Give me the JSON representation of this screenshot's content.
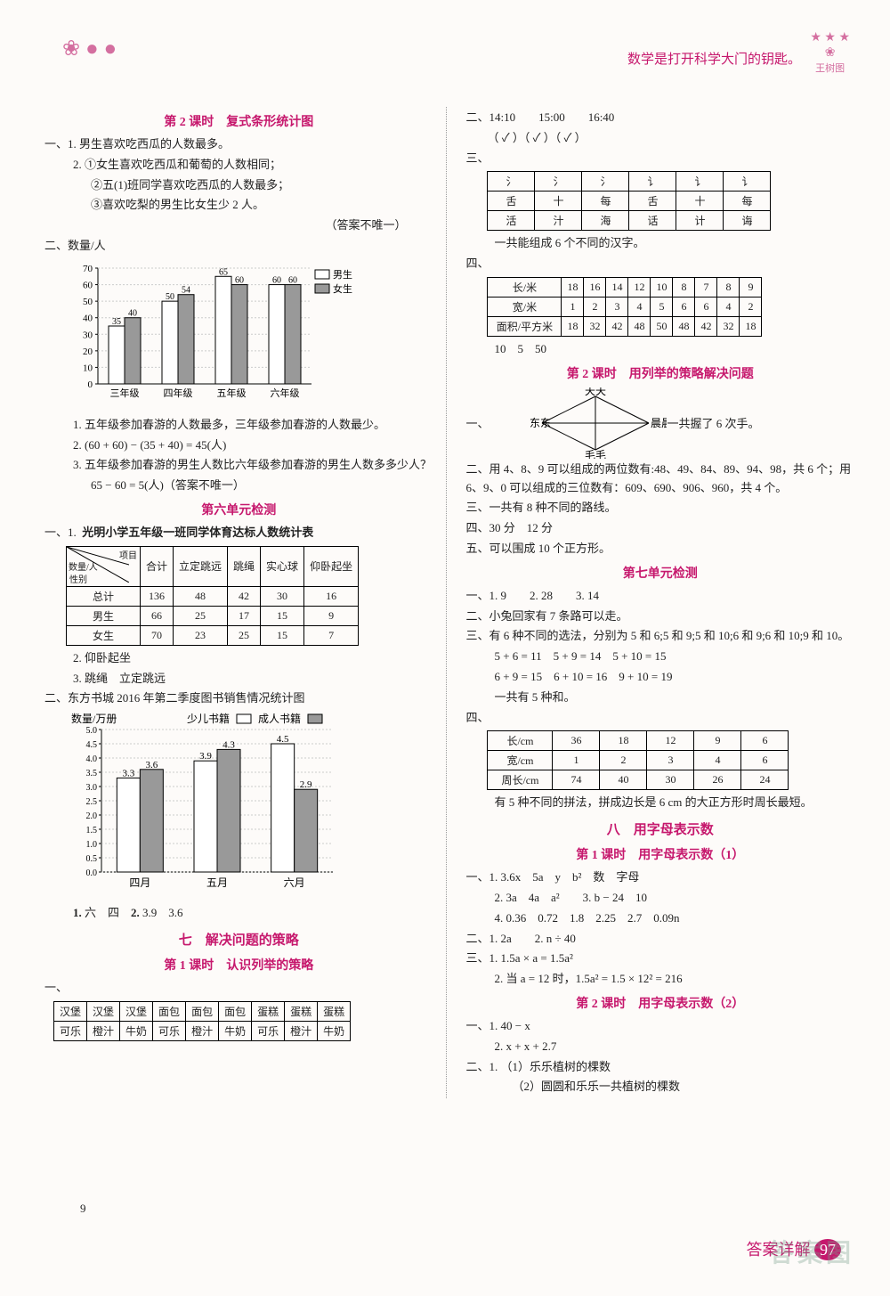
{
  "header": {
    "quote": "数学是打开科学大门的钥匙。",
    "deco_left": "❀ ● ●",
    "deco_right_top": "★ ★ ★",
    "deco_right_bottom": "王树图"
  },
  "left": {
    "lesson2_title": "第 2 课时　复式条形统计图",
    "q1_label": "一、1.",
    "q1_text": "男生喜欢吃西瓜的人数最多。",
    "q2_label": "2.",
    "q2_line1": "①女生喜欢吃西瓜和葡萄的人数相同；",
    "q2_line2": "②五(1)班同学喜欢吃西瓜的人数最多；",
    "q2_line3": "③喜欢吃梨的男生比女生少 2 人。",
    "q2_note": "（答案不唯一）",
    "chart1": {
      "title": "二、数量/人",
      "ylim": [
        0,
        70
      ],
      "ytick": 10,
      "categories": [
        "三年级",
        "四年级",
        "五年级",
        "六年级"
      ],
      "series": [
        {
          "name": "男生",
          "color": "#ffffff",
          "values": [
            35,
            50,
            65,
            60
          ]
        },
        {
          "name": "女生",
          "color": "#999999",
          "values": [
            40,
            54,
            60,
            60
          ]
        }
      ],
      "value_labels": [
        [
          "35",
          "40"
        ],
        [
          "50",
          "54"
        ],
        [
          "65",
          "60"
        ],
        [
          "60",
          "60"
        ]
      ]
    },
    "c1_1_label": "1.",
    "c1_1": "五年级参加春游的人数最多，三年级参加春游的人数最少。",
    "c1_2_label": "2.",
    "c1_2": "(60 + 60) − (35 + 40) = 45(人)",
    "c1_3_label": "3.",
    "c1_3a": "五年级参加春游的男生人数比六年级参加春游的男生人数多多少人？",
    "c1_3b": "65 − 60 = 5(人)（答案不唯一）",
    "unit6_title": "第六单元检测",
    "u6_1_label": "一、1.",
    "u6_table_title": "光明小学五年级一班同学体育达标人数统计表",
    "u6_table": {
      "head_diag": "数量/人\\项目\\性别",
      "cols": [
        "合计",
        "立定跳远",
        "跳绳",
        "实心球",
        "仰卧起坐"
      ],
      "rows": [
        [
          "总计",
          "136",
          "48",
          "42",
          "30",
          "16"
        ],
        [
          "男生",
          "66",
          "25",
          "17",
          "15",
          "9"
        ],
        [
          "女生",
          "70",
          "23",
          "25",
          "15",
          "7"
        ]
      ]
    },
    "u6_2_label": "2.",
    "u6_2": "仰卧起坐",
    "u6_3_label": "3.",
    "u6_3": "跳绳　立定跳远",
    "chart2_caption": "二、东方书城 2016 年第二季度图书销售情况统计图",
    "chart2": {
      "ylabel": "数量/万册",
      "legend": [
        "少儿书籍",
        "成人书籍"
      ],
      "ylim": [
        0,
        5.0
      ],
      "ytick": 0.5,
      "categories": [
        "四月",
        "五月",
        "六月"
      ],
      "series": [
        {
          "name": "少儿书籍",
          "color": "#ffffff",
          "values": [
            3.3,
            3.9,
            4.5
          ]
        },
        {
          "name": "成人书籍",
          "color": "#999999",
          "values": [
            3.6,
            4.3,
            2.9
          ]
        }
      ],
      "value_labels": [
        [
          "3.3",
          "3.6"
        ],
        [
          "3.9",
          "4.3"
        ],
        [
          "4.5",
          "2.9"
        ]
      ]
    },
    "c2_1_label": "1.",
    "c2_1": "六　四",
    "c2_2_label": "2.",
    "c2_2": "3.9　3.6",
    "unit7_title": "七　解决问题的策略",
    "lesson7_1_title": "第 1 课时　认识列举的策略",
    "u7_table1": {
      "row1": [
        "汉堡",
        "汉堡",
        "汉堡",
        "面包",
        "面包",
        "面包",
        "蛋糕",
        "蛋糕",
        "蛋糕"
      ],
      "row2": [
        "可乐",
        "橙汁",
        "牛奶",
        "可乐",
        "橙汁",
        "牛奶",
        "可乐",
        "橙汁",
        "牛奶"
      ]
    }
  },
  "right": {
    "q2_line": "二、14:10　　15:00　　16:40",
    "q2_checks": "（ ✓ ）（ ✓ ）（ ✓ ）",
    "q3_label": "三、",
    "hanzi_table": {
      "row1": [
        "氵",
        "氵",
        "氵",
        "讠",
        "讠",
        "讠"
      ],
      "row2": [
        "舌",
        "十",
        "每",
        "舌",
        "十",
        "每"
      ],
      "row3": [
        "活",
        "汁",
        "海",
        "话",
        "计",
        "诲"
      ]
    },
    "q3_ans": "一共能组成 6 个不同的汉字。",
    "q4_label": "四、",
    "q4_table": {
      "head": [
        "长/米",
        "18",
        "16",
        "14",
        "12",
        "10",
        "8",
        "7",
        "8",
        "9"
      ],
      "r2": [
        "宽/米",
        "1",
        "2",
        "3",
        "4",
        "5",
        "6",
        "6",
        "4",
        "2"
      ],
      "r3": [
        "面积/平方米",
        "18",
        "32",
        "42",
        "48",
        "50",
        "48",
        "42",
        "32",
        "18"
      ]
    },
    "q4_ans": "10　5　50",
    "lesson7_2_title": "第 2 课时　用列举的策略解决问题",
    "d1_label": "一、",
    "d1_names": {
      "top": "天天",
      "left": "东东",
      "right": "晨晨",
      "bottom": "毛毛"
    },
    "d1_ans": "一共握了 6 次手。",
    "d2_label": "二、",
    "d2": "用 4、8、9 可以组成的两位数有:48、49、84、89、94、98，共 6 个；用 6、9、0 可以组成的三位数有：609、690、906、960，共 4 个。",
    "d3_label": "三、",
    "d3": "一共有 8 种不同的路线。",
    "d4_label": "四、",
    "d4": "30 分　12 分",
    "d5_label": "五、",
    "d5": "可以围成 10 个正方形。",
    "unit7_test_title": "第七单元检测",
    "t1_label": "一、1.",
    "t1": "9　　2. 28　　3. 14",
    "t2_label": "二、",
    "t2": "小兔回家有 7 条路可以走。",
    "t3_label": "三、",
    "t3a": "有 6 种不同的选法，分别为 5 和 6;5 和 9;5 和 10;6 和 9;6 和 10;9 和 10。",
    "t3b": "5 + 6 = 11　5 + 9 = 14　5 + 10 = 15",
    "t3c": "6 + 9 = 15　6 + 10 = 16　9 + 10 = 19",
    "t3d": "一共有 5 种和。",
    "t4_label": "四、",
    "t4_table": {
      "r1": [
        "长/cm",
        "36",
        "18",
        "12",
        "9",
        "6"
      ],
      "r2": [
        "宽/cm",
        "1",
        "2",
        "3",
        "4",
        "6"
      ],
      "r3": [
        "周长/cm",
        "74",
        "40",
        "30",
        "26",
        "24"
      ]
    },
    "t4_ans": "有 5 种不同的拼法，拼成边长是 6 cm 的大正方形时周长最短。",
    "unit8_title": "八　用字母表示数",
    "lesson8_1_title": "第 1 课时　用字母表示数（1）",
    "a1_label": "一、1.",
    "a1": "3.6x　5a　y　b²　数　字母",
    "a2_label": "2.",
    "a2": "3a　4a　a²　　3. b − 24　10",
    "a4_label": "4.",
    "a4": "0.36　0.72　1.8　2.25　2.7　0.09n",
    "b1_label": "二、1.",
    "b1": "2a　　2. n ÷ 40",
    "c1_label": "三、1.",
    "c1": "1.5a × a = 1.5a²",
    "c2_label": "2.",
    "c2": "当 a = 12 时，1.5a² = 1.5 × 12² = 216",
    "lesson8_2_title": "第 2 课时　用字母表示数（2）",
    "e1_label": "一、1.",
    "e1": "40 − x",
    "e2_label": "2.",
    "e2": "x + x + 2.7",
    "f1_label": "二、1.",
    "f1": "（1）乐乐植树的棵数",
    "f2": "（2）圆圆和乐乐一共植树的棵数"
  },
  "footer": {
    "page_num": "9",
    "right_label": "答案详解",
    "right_num": "97",
    "watermark": "答案图"
  }
}
